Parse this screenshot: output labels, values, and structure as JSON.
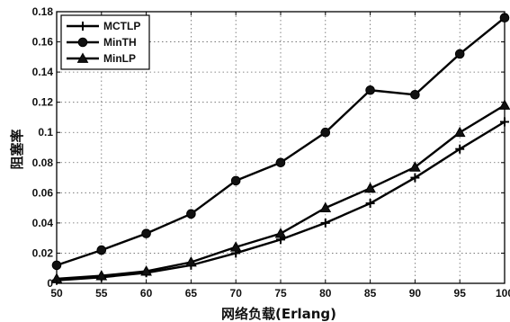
{
  "chart_data": {
    "type": "line",
    "title": "",
    "xlabel": "网络负载(Erlang)",
    "ylabel": "阻塞率",
    "x": [
      50,
      55,
      60,
      65,
      70,
      75,
      80,
      85,
      90,
      95,
      100
    ],
    "xticks": [
      "50",
      "55",
      "60",
      "65",
      "70",
      "75",
      "80",
      "85",
      "90",
      "95",
      "100"
    ],
    "yticks": [
      "0",
      "0.02",
      "0.04",
      "0.06",
      "0.08",
      "0.1",
      "0.12",
      "0.14",
      "0.16",
      "0.18"
    ],
    "xlim": [
      50,
      100
    ],
    "ylim": [
      0,
      0.18
    ],
    "grid": true,
    "legend_position": "top-left",
    "series": [
      {
        "name": "MCTLP",
        "marker": "plus",
        "values": [
          0.002,
          0.004,
          0.007,
          0.012,
          0.02,
          0.029,
          0.04,
          0.053,
          0.07,
          0.089,
          0.107
        ]
      },
      {
        "name": "MinTH",
        "marker": "circle",
        "values": [
          0.012,
          0.022,
          0.033,
          0.046,
          0.068,
          0.08,
          0.1,
          0.128,
          0.125,
          0.152,
          0.176
        ]
      },
      {
        "name": "MinLP",
        "marker": "triangle",
        "values": [
          0.003,
          0.005,
          0.008,
          0.014,
          0.024,
          0.033,
          0.05,
          0.063,
          0.077,
          0.1,
          0.118
        ]
      }
    ]
  }
}
